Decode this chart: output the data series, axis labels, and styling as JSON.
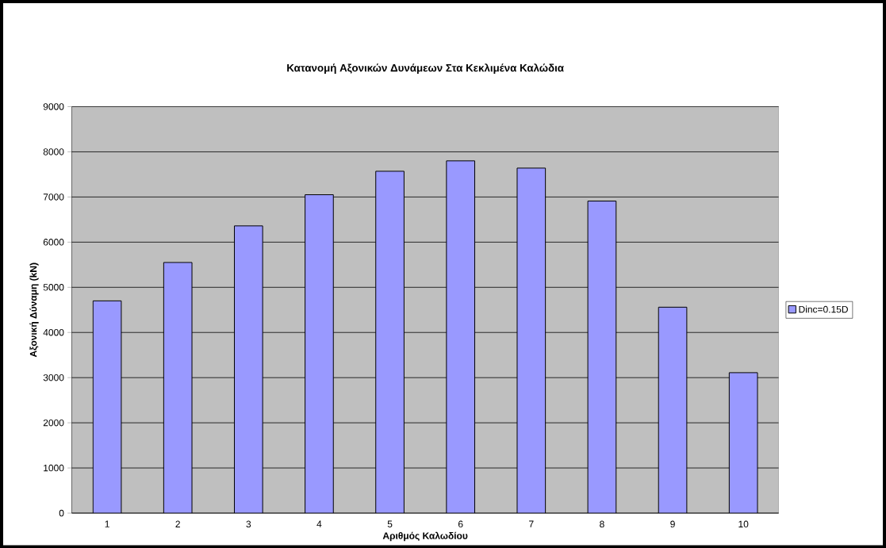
{
  "chart_data": {
    "type": "bar",
    "title": "Κατανομή Αξονικών Δυνάμεων Στα Κεκλιμένα Καλώδια",
    "xlabel": "Αριθμός Καλωδίου",
    "ylabel": "Αξονική Δύναμη (kN)",
    "categories": [
      "1",
      "2",
      "3",
      "4",
      "5",
      "6",
      "7",
      "8",
      "9",
      "10"
    ],
    "series": [
      {
        "name": "Dinc=0.15D",
        "color": "#9999ff",
        "values": [
          4700,
          5550,
          6360,
          7050,
          7570,
          7800,
          7640,
          6910,
          4560,
          3110
        ]
      }
    ],
    "ylim": [
      0,
      9000
    ],
    "yticks": [
      0,
      1000,
      2000,
      3000,
      4000,
      5000,
      6000,
      7000,
      8000,
      9000
    ],
    "grid": "y",
    "legend": "right"
  }
}
